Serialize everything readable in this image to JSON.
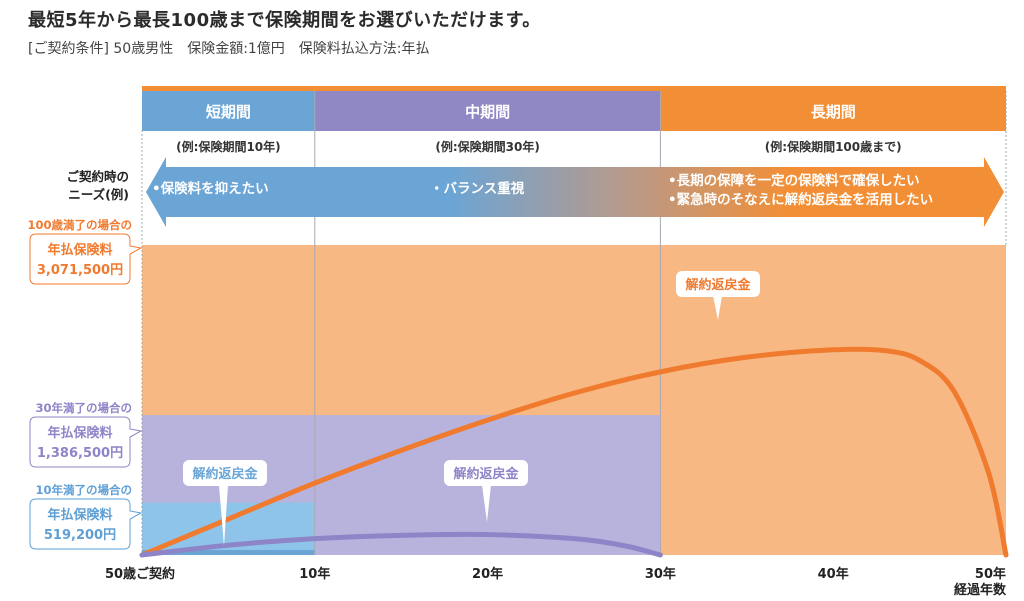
{
  "header": {
    "title": "最短5年から最長100歳まで保険期間をお選びいただけます。",
    "conditions": "[ご契約条件] 50歳男性　保険金額:1億円　保険料払込方法:年払"
  },
  "colors": {
    "short": "#6aa5d6",
    "short_area": "#8ec4ea",
    "mid": "#9088c4",
    "mid_area": "#b8b3dc",
    "long": "#f28f36",
    "long_area": "#f7b883",
    "curve_long": "#f07a2e",
    "curve_mid": "#8d85c8"
  },
  "periods": [
    {
      "key": "short",
      "label": "短期間",
      "example": "(例:保険期間10年)",
      "start": 0,
      "end": 10
    },
    {
      "key": "mid",
      "label": "中期間",
      "example": "(例:保険期間30年)",
      "start": 10,
      "end": 30
    },
    {
      "key": "long",
      "label": "長期間",
      "example": "(例:保険期間100歳まで)",
      "start": 30,
      "end": 50
    }
  ],
  "needs": {
    "label_line1": "ご契約時の",
    "label_line2": "ニーズ(例)",
    "short": "•保険料を抑えたい",
    "mid": "・バランス重視",
    "long_line1": "•長期の保障を一定の保険料で確保したい",
    "long_line2": "•緊急時のそなえに解約返戻金を活用したい"
  },
  "premiums": [
    {
      "key": "long",
      "caption": "100歳満了の場合の",
      "label": "年払保険料",
      "amount": "3,071,500円",
      "value": 3071500
    },
    {
      "key": "mid",
      "caption": "30年満了の場合の",
      "label": "年払保険料",
      "amount": "1,386,500円",
      "value": 1386500
    },
    {
      "key": "short",
      "caption": "10年満了の場合の",
      "label": "年払保険料",
      "amount": "519,200円",
      "value": 519200
    }
  ],
  "chart_data": {
    "type": "area",
    "title": "最短5年から最長100歳まで保険期間をお選びいただけます。",
    "xlabel": "経過年数",
    "ylabel": "",
    "xlim": [
      0,
      50
    ],
    "x_ticks": [
      0,
      10,
      20,
      30,
      40,
      50
    ],
    "x_tick_labels": [
      "50歳ご契約",
      "10年",
      "20年",
      "30年",
      "40年",
      "50年"
    ],
    "ylim": [
      0,
      3071500
    ],
    "grid": false,
    "legend": "none",
    "series": [
      {
        "name": "100歳満了 解約返戻金",
        "callout": "解約返戻金",
        "x": [
          0,
          5,
          10,
          15,
          20,
          25,
          30,
          35,
          40,
          43,
          45,
          47,
          49,
          50
        ],
        "values": [
          0,
          440000,
          880000,
          1280000,
          1650000,
          1980000,
          2240000,
          2420000,
          2510000,
          2500000,
          2380000,
          2000000,
          1000000,
          0
        ]
      },
      {
        "name": "30年満了 解約返戻金",
        "callout": "解約返戻金",
        "x": [
          0,
          5,
          10,
          15,
          20,
          25,
          28,
          30
        ],
        "values": [
          0,
          120000,
          200000,
          240000,
          250000,
          200000,
          110000,
          0
        ]
      },
      {
        "name": "10年満了 解約返戻金",
        "callout": "",
        "x": [
          0,
          10
        ],
        "values": [
          0,
          0
        ]
      }
    ]
  }
}
